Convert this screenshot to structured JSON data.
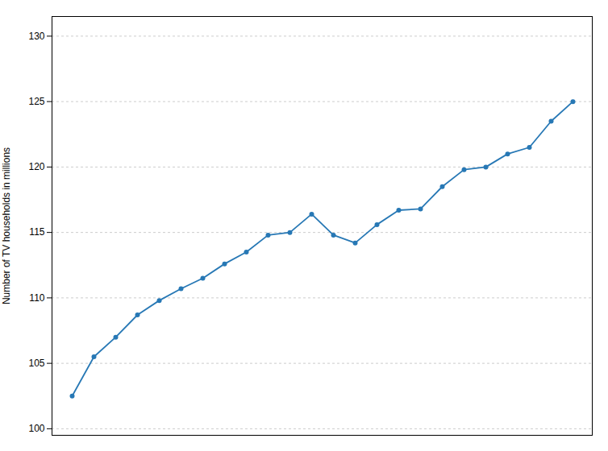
{
  "chart_data": {
    "type": "line",
    "ylabel": "Number of TV households in millions",
    "categories": [
      null,
      null,
      null,
      null,
      null,
      null,
      null,
      null,
      null,
      null,
      null,
      null,
      null,
      null,
      null,
      null,
      null,
      null,
      null,
      null,
      null,
      null,
      null,
      null
    ],
    "values": [
      102.5,
      105.5,
      107.0,
      108.7,
      109.8,
      110.7,
      111.5,
      112.6,
      113.5,
      114.8,
      115.0,
      116.4,
      114.8,
      114.2,
      115.6,
      116.7,
      116.8,
      118.5,
      119.8,
      120.0,
      121.0,
      121.5,
      123.5,
      125.0
    ],
    "color": "#2778b5",
    "marker": "circle",
    "ylim": [
      99.5,
      131.5
    ],
    "yticks": [
      100,
      105,
      110,
      115,
      120,
      125,
      130
    ],
    "grid": true,
    "tick_labels": "y"
  }
}
